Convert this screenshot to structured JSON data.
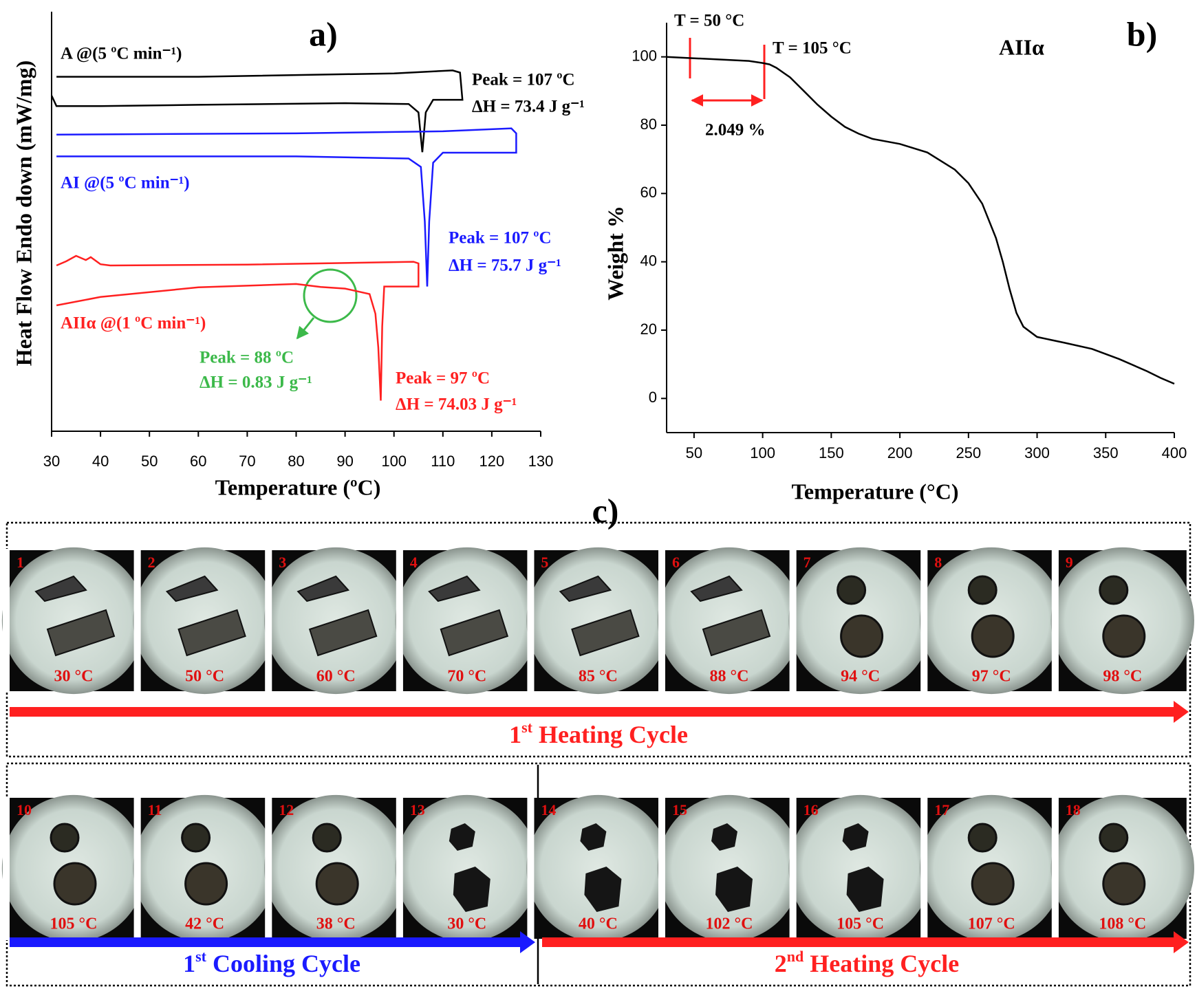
{
  "chart_data": [
    {
      "type": "line",
      "label": "a)",
      "x_label": "Temperature (ºC)",
      "y_label": "Heat Flow Endo down (mW/mg)",
      "xlim": [
        30,
        130
      ],
      "xticks": [
        30,
        40,
        50,
        60,
        70,
        80,
        90,
        100,
        110,
        120,
        130
      ],
      "ylim": [
        0,
        100
      ],
      "series": [
        {
          "color": "#000000",
          "x": [
            31,
            60,
            100,
            112,
            113.5,
            114,
            108,
            106.5,
            105.8,
            105,
            103,
            90,
            60,
            40,
            31,
            30
          ],
          "values": [
            84.5,
            84.5,
            85.3,
            86,
            85.5,
            79,
            79,
            76,
            66.5,
            76,
            78,
            78.2,
            77.8,
            77.5,
            77.5,
            80
          ]
        },
        {
          "color": "#1a1aff",
          "x": [
            31,
            80,
            110,
            124,
            125,
            125,
            110,
            108,
            107.2,
            106.8,
            106.3,
            105.5,
            103,
            80,
            31
          ],
          "values": [
            70.7,
            71,
            71.5,
            72.2,
            71,
            66.4,
            66.4,
            64,
            50,
            34.5,
            50,
            63,
            65,
            65.5,
            65.5
          ]
        },
        {
          "color": "#ff2020",
          "x": [
            31,
            33,
            35,
            37,
            38,
            40,
            42,
            70,
            104,
            105,
            105,
            98,
            97.6,
            97.3,
            96.8,
            96.2,
            95,
            90,
            85,
            80,
            60,
            40,
            31
          ],
          "values": [
            39.5,
            40.5,
            41.8,
            40.8,
            41.5,
            39.8,
            39.5,
            39.7,
            40.4,
            40,
            34.5,
            34.5,
            25,
            7.3,
            20,
            28,
            32.7,
            34,
            34.4,
            35.1,
            34.3,
            32,
            30
          ]
        }
      ],
      "annotations": [
        {
          "text": "A @(5 ºC min⁻¹)",
          "color": "#000000"
        },
        {
          "text": "Peak = 107 ºC",
          "color": "#000000"
        },
        {
          "text": "ΔH = 73.4 J g⁻¹",
          "color": "#000000"
        },
        {
          "text": "AI @(5 ºC min⁻¹)",
          "color": "#1a1aff"
        },
        {
          "text": "Peak = 107 ºC",
          "color": "#1a1aff"
        },
        {
          "text": "ΔH = 75.7 J g⁻¹",
          "color": "#1a1aff"
        },
        {
          "text": "AIIα @(1 ºC min⁻¹)",
          "color": "#ff2020"
        },
        {
          "text": "Peak = 88 ºC",
          "color": "#3cb94a"
        },
        {
          "text": "ΔH = 0.83 J g⁻¹",
          "color": "#3cb94a"
        },
        {
          "text": "Peak = 97 ºC",
          "color": "#ff2020"
        },
        {
          "text": "ΔH = 74.03 J g⁻¹",
          "color": "#ff2020"
        }
      ]
    },
    {
      "type": "line",
      "label": "b)",
      "x_label": "Temperature (°C)",
      "y_label": "Weight %",
      "xlim": [
        30,
        400
      ],
      "xticks": [
        50,
        100,
        150,
        200,
        250,
        300,
        350,
        400
      ],
      "ylim": [
        -10,
        110
      ],
      "yticks": [
        0,
        20,
        40,
        60,
        80,
        100
      ],
      "series": [
        {
          "color": "#000000",
          "x": [
            30,
            50,
            70,
            90,
            100,
            105,
            110,
            120,
            130,
            140,
            150,
            160,
            170,
            180,
            200,
            220,
            240,
            250,
            260,
            270,
            275,
            280,
            285,
            290,
            300,
            320,
            340,
            360,
            380,
            390,
            400
          ],
          "values": [
            100,
            99.6,
            99.2,
            98.8,
            98.2,
            97.8,
            96.8,
            94,
            90,
            86,
            82.5,
            79.5,
            77.5,
            76,
            74.5,
            72,
            67,
            63,
            57,
            47,
            40,
            32,
            25,
            21,
            18,
            16.3,
            14.5,
            11.5,
            8,
            6,
            4.3
          ]
        }
      ],
      "annotations": [
        {
          "text": "T = 50 °C",
          "color": "#000000"
        },
        {
          "text": "T = 105 °C",
          "color": "#000000"
        },
        {
          "text": "2.049 %",
          "color": "#000000"
        },
        {
          "text": "AIIα",
          "color": "#000000"
        }
      ]
    }
  ],
  "panel_c": {
    "label": "c)",
    "frames": [
      {
        "number": "1",
        "temp": "30 °C"
      },
      {
        "number": "2",
        "temp": "50 °C"
      },
      {
        "number": "3",
        "temp": "60 °C"
      },
      {
        "number": "4",
        "temp": "70 °C"
      },
      {
        "number": "5",
        "temp": "85 °C"
      },
      {
        "number": "6",
        "temp": "88 °C"
      },
      {
        "number": "7",
        "temp": "94 °C"
      },
      {
        "number": "8",
        "temp": "97 °C"
      },
      {
        "number": "9",
        "temp": "98 °C"
      },
      {
        "number": "10",
        "temp": "105 °C"
      },
      {
        "number": "11",
        "temp": "42 °C"
      },
      {
        "number": "12",
        "temp": "38 °C"
      },
      {
        "number": "13",
        "temp": "30 °C"
      },
      {
        "number": "14",
        "temp": "40 °C"
      },
      {
        "number": "15",
        "temp": "102 °C"
      },
      {
        "number": "16",
        "temp": "105 °C"
      },
      {
        "number": "17",
        "temp": "107 °C"
      },
      {
        "number": "18",
        "temp": "108 °C"
      }
    ],
    "cycles": [
      {
        "ordinal": "1",
        "suffix": "st",
        "label": " Heating Cycle"
      },
      {
        "ordinal": "1",
        "suffix": "st",
        "label": " Cooling Cycle"
      },
      {
        "ordinal": "2",
        "suffix": "nd",
        "label": " Heating Cycle"
      }
    ]
  }
}
